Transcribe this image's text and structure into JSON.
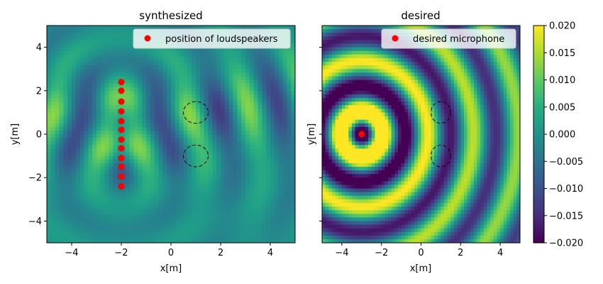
{
  "chart_data": [
    {
      "type": "heatmap",
      "title": "synthesized",
      "xlabel": "x[m]",
      "ylabel": "y[m]",
      "xlim": [
        -5,
        5
      ],
      "ylim": [
        -5,
        5
      ],
      "xticks": [
        -4,
        -2,
        0,
        2,
        4
      ],
      "yticks": [
        -4,
        -2,
        0,
        2,
        4
      ],
      "xtick_labels": [
        "−4",
        "−2",
        "0",
        "2",
        "4"
      ],
      "ytick_labels": [
        "−4",
        "−2",
        "0",
        "2",
        "4"
      ],
      "legend": {
        "label": "position of loudspeakers",
        "placement": "upper right"
      },
      "points": {
        "name": "position of loudspeakers",
        "color": "#ff0000",
        "x": [
          -2,
          -2,
          -2,
          -2,
          -2,
          -2,
          -2,
          -2,
          -2,
          -2,
          -2,
          -2,
          -2
        ],
        "y": [
          2.4,
          2.0,
          1.5,
          1.05,
          0.6,
          0.2,
          -0.25,
          -0.65,
          -1.1,
          -1.5,
          -1.95,
          -2.4,
          -2.4
        ]
      },
      "circles": [
        {
          "cx": 1.0,
          "cy": 1.0,
          "rx": 0.5,
          "ry": 0.5,
          "style": "dashed"
        },
        {
          "cx": 1.0,
          "cy": -1.0,
          "rx": 0.5,
          "ry": 0.5,
          "style": "dashed"
        }
      ]
    },
    {
      "type": "heatmap",
      "title": "desired",
      "xlabel": "x[m]",
      "ylabel": "y[m]",
      "xlim": [
        -5,
        5
      ],
      "ylim": [
        -5,
        5
      ],
      "xticks": [
        -4,
        -2,
        0,
        2,
        4
      ],
      "yticks": [
        -4,
        -2,
        0,
        2,
        4
      ],
      "xtick_labels": [
        "−4",
        "−2",
        "0",
        "2",
        "4"
      ],
      "ytick_labels": [
        "−4",
        "−2",
        "0",
        "2",
        "4"
      ],
      "legend": {
        "label": "desired microphone",
        "placement": "upper right"
      },
      "points": {
        "name": "desired microphone",
        "color": "#ff0000",
        "x": [
          -3
        ],
        "y": [
          0
        ]
      },
      "circles": [
        {
          "cx": 1.0,
          "cy": 1.0,
          "rx": 0.5,
          "ry": 0.5,
          "style": "dashed"
        },
        {
          "cx": 1.0,
          "cy": -1.0,
          "rx": 0.5,
          "ry": 0.5,
          "style": "dashed"
        }
      ]
    }
  ],
  "colorbar": {
    "colormap": "viridis",
    "vmin": -0.02,
    "vmax": 0.02,
    "ticks": [
      0.02,
      0.015,
      0.01,
      0.005,
      0.0,
      -0.005,
      -0.01,
      -0.015,
      -0.02
    ],
    "tick_labels": [
      "0.020",
      "0.015",
      "0.010",
      "0.005",
      "0.000",
      "−0.005",
      "−0.010",
      "−0.015",
      "−0.020"
    ]
  }
}
